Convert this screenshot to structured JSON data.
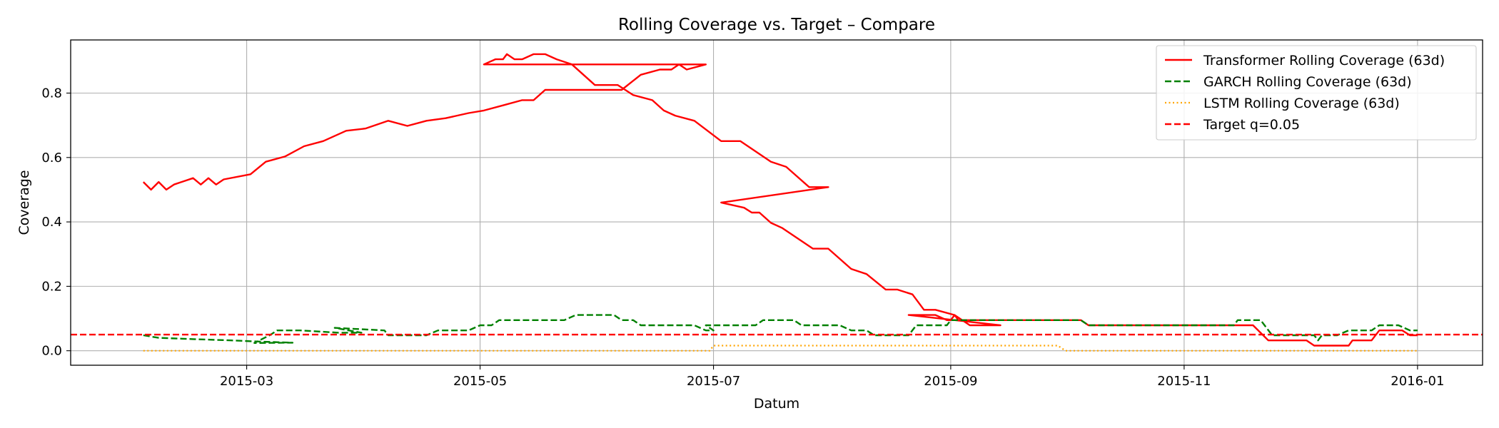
{
  "chart_data": {
    "type": "line",
    "title": "Rolling Coverage vs. Target – Compare",
    "xlabel": "Datum",
    "ylabel": "Coverage",
    "x_axis": {
      "kind": "date",
      "range": [
        "2015-01-14",
        "2016-01-18"
      ]
    },
    "y_axis": {
      "range": [
        -0.045,
        0.965
      ]
    },
    "xticks": [
      {
        "value": "2015-03-01",
        "label": "2015-03"
      },
      {
        "value": "2015-05-01",
        "label": "2015-05"
      },
      {
        "value": "2015-07-01",
        "label": "2015-07"
      },
      {
        "value": "2015-09-01",
        "label": "2015-09"
      },
      {
        "value": "2015-11-01",
        "label": "2015-11"
      },
      {
        "value": "2016-01-01",
        "label": "2016-01"
      }
    ],
    "yticks": [
      {
        "value": 0.0,
        "label": "0.0"
      },
      {
        "value": 0.2,
        "label": "0.2"
      },
      {
        "value": 0.4,
        "label": "0.4"
      },
      {
        "value": 0.6,
        "label": "0.6"
      },
      {
        "value": 0.8,
        "label": "0.8"
      }
    ],
    "grid": true,
    "legend_position": "top-right",
    "series": [
      {
        "name": "Transformer Rolling Coverage (63d)",
        "color": "#ff0000",
        "style": "solid",
        "points": [
          [
            "2015-02-02",
            0.524
          ],
          [
            "2015-02-04",
            0.5
          ],
          [
            "2015-02-06",
            0.524
          ],
          [
            "2015-02-08",
            0.5
          ],
          [
            "2015-02-10",
            0.516
          ],
          [
            "2015-02-15",
            0.536
          ],
          [
            "2015-02-17",
            0.516
          ],
          [
            "2015-02-19",
            0.536
          ],
          [
            "2015-02-21",
            0.516
          ],
          [
            "2015-02-23",
            0.532
          ],
          [
            "2015-03-02",
            0.548
          ],
          [
            "2015-03-06",
            0.587
          ],
          [
            "2015-03-11",
            0.603
          ],
          [
            "2015-03-16",
            0.635
          ],
          [
            "2015-03-21",
            0.651
          ],
          [
            "2015-03-27",
            0.683
          ],
          [
            "2015-04-01",
            0.69
          ],
          [
            "2015-04-07",
            0.714
          ],
          [
            "2015-04-12",
            0.698
          ],
          [
            "2015-04-17",
            0.714
          ],
          [
            "2015-04-22",
            0.722
          ],
          [
            "2015-04-28",
            0.738
          ],
          [
            "2015-05-02",
            0.746
          ],
          [
            "2015-05-07",
            0.762
          ],
          [
            "2015-05-12",
            0.778
          ],
          [
            "2015-05-15",
            0.778
          ],
          [
            "2015-05-18",
            0.81
          ],
          [
            "2015-05-23",
            0.81
          ],
          [
            "2015-06-01",
            0.81
          ],
          [
            "2015-06-07",
            0.81
          ],
          [
            "2015-06-12",
            0.857
          ],
          [
            "2015-06-17",
            0.873
          ],
          [
            "2015-06-20",
            0.873
          ],
          [
            "2015-06-22",
            0.889
          ],
          [
            "2015-06-24",
            0.873
          ],
          [
            "2015-06-29",
            0.889
          ],
          [
            "2015-05-02",
            0.889
          ],
          [
            "2015-05-05",
            0.905
          ],
          [
            "2015-05-07",
            0.905
          ],
          [
            "2015-05-08",
            0.921
          ],
          [
            "2015-05-10",
            0.905
          ],
          [
            "2015-05-12",
            0.905
          ],
          [
            "2015-05-15",
            0.921
          ],
          [
            "2015-05-18",
            0.921
          ],
          [
            "2015-05-21",
            0.905
          ],
          [
            "2015-05-25",
            0.889
          ],
          [
            "2015-05-31",
            0.825
          ],
          [
            "2015-06-06",
            0.825
          ],
          [
            "2015-06-10",
            0.794
          ],
          [
            "2015-06-15",
            0.778
          ],
          [
            "2015-06-18",
            0.746
          ],
          [
            "2015-06-21",
            0.73
          ],
          [
            "2015-06-26",
            0.714
          ],
          [
            "2015-07-03",
            0.651
          ],
          [
            "2015-07-08",
            0.651
          ],
          [
            "2015-07-16",
            0.587
          ],
          [
            "2015-07-20",
            0.571
          ],
          [
            "2015-07-26",
            0.508
          ],
          [
            "2015-07-31",
            0.508
          ],
          [
            "2015-07-03",
            0.46
          ],
          [
            "2015-07-09",
            0.444
          ],
          [
            "2015-07-11",
            0.429
          ],
          [
            "2015-07-13",
            0.429
          ],
          [
            "2015-07-16",
            0.397
          ],
          [
            "2015-07-19",
            0.381
          ],
          [
            "2015-07-27",
            0.317
          ],
          [
            "2015-07-31",
            0.317
          ],
          [
            "2015-08-06",
            0.254
          ],
          [
            "2015-08-10",
            0.238
          ],
          [
            "2015-08-15",
            0.19
          ],
          [
            "2015-08-18",
            0.19
          ],
          [
            "2015-08-22",
            0.175
          ],
          [
            "2015-08-25",
            0.127
          ],
          [
            "2015-08-28",
            0.127
          ],
          [
            "2015-09-02",
            0.111
          ],
          [
            "2015-09-06",
            0.079
          ],
          [
            "2015-09-10",
            0.079
          ],
          [
            "2015-09-14",
            0.079
          ],
          [
            "2015-08-21",
            0.111
          ],
          [
            "2015-08-28",
            0.111
          ],
          [
            "2015-08-31",
            0.095
          ],
          [
            "2015-09-01",
            0.095
          ],
          [
            "2015-09-02",
            0.111
          ],
          [
            "2015-09-03",
            0.095
          ],
          [
            "2015-10-05",
            0.095
          ],
          [
            "2015-10-07",
            0.079
          ],
          [
            "2015-11-19",
            0.079
          ],
          [
            "2015-11-23",
            0.032
          ],
          [
            "2015-12-03",
            0.032
          ],
          [
            "2015-12-05",
            0.016
          ],
          [
            "2015-12-14",
            0.016
          ],
          [
            "2015-12-15",
            0.032
          ],
          [
            "2015-12-20",
            0.032
          ],
          [
            "2015-12-22",
            0.063
          ],
          [
            "2015-12-28",
            0.063
          ],
          [
            "2015-12-30",
            0.048
          ],
          [
            "2016-01-01",
            0.048
          ]
        ]
      },
      {
        "name": "GARCH Rolling Coverage (63d)",
        "color": "#008000",
        "style": "dashed",
        "points": [
          [
            "2015-02-02",
            0.048
          ],
          [
            "2015-02-06",
            0.04
          ],
          [
            "2015-02-15",
            0.036
          ],
          [
            "2015-02-25",
            0.032
          ],
          [
            "2015-03-05",
            0.028
          ],
          [
            "2015-03-13",
            0.025
          ],
          [
            "2015-03-03",
            0.024
          ],
          [
            "2015-03-07",
            0.048
          ],
          [
            "2015-03-09",
            0.063
          ],
          [
            "2015-03-15",
            0.063
          ],
          [
            "2015-03-25",
            0.056
          ],
          [
            "2015-03-31",
            0.056
          ],
          [
            "2015-03-24",
            0.071
          ],
          [
            "2015-04-06",
            0.063
          ],
          [
            "2015-04-07",
            0.048
          ],
          [
            "2015-04-17",
            0.048
          ],
          [
            "2015-04-20",
            0.063
          ],
          [
            "2015-04-28",
            0.063
          ],
          [
            "2015-05-01",
            0.079
          ],
          [
            "2015-05-04",
            0.079
          ],
          [
            "2015-05-06",
            0.095
          ],
          [
            "2015-05-23",
            0.095
          ],
          [
            "2015-05-26",
            0.111
          ],
          [
            "2015-06-05",
            0.111
          ],
          [
            "2015-06-07",
            0.095
          ],
          [
            "2015-06-10",
            0.095
          ],
          [
            "2015-06-12",
            0.079
          ],
          [
            "2015-06-26",
            0.079
          ],
          [
            "2015-06-29",
            0.063
          ],
          [
            "2015-07-01",
            0.063
          ],
          [
            "2015-06-29",
            0.079
          ],
          [
            "2015-07-12",
            0.079
          ],
          [
            "2015-07-14",
            0.095
          ],
          [
            "2015-07-22",
            0.095
          ],
          [
            "2015-07-24",
            0.079
          ],
          [
            "2015-08-03",
            0.079
          ],
          [
            "2015-08-06",
            0.063
          ],
          [
            "2015-08-10",
            0.063
          ],
          [
            "2015-08-12",
            0.048
          ],
          [
            "2015-08-21",
            0.048
          ],
          [
            "2015-08-23",
            0.079
          ],
          [
            "2015-08-31",
            0.079
          ],
          [
            "2015-09-01",
            0.095
          ],
          [
            "2015-10-05",
            0.095
          ],
          [
            "2015-10-07",
            0.079
          ],
          [
            "2015-11-14",
            0.079
          ],
          [
            "2015-11-15",
            0.095
          ],
          [
            "2015-11-21",
            0.095
          ],
          [
            "2015-11-24",
            0.048
          ],
          [
            "2015-12-05",
            0.048
          ],
          [
            "2015-12-06",
            0.032
          ],
          [
            "2015-12-07",
            0.048
          ],
          [
            "2015-12-11",
            0.048
          ],
          [
            "2015-12-14",
            0.063
          ],
          [
            "2015-12-20",
            0.063
          ],
          [
            "2015-12-22",
            0.079
          ],
          [
            "2015-12-27",
            0.079
          ],
          [
            "2015-12-30",
            0.063
          ],
          [
            "2016-01-01",
            0.063
          ]
        ]
      },
      {
        "name": "LSTM Rolling Coverage (63d)",
        "color": "#ffa500",
        "style": "dotted",
        "points": [
          [
            "2015-02-02",
            0.0
          ],
          [
            "2015-06-30",
            0.0
          ],
          [
            "2015-07-01",
            0.016
          ],
          [
            "2015-09-29",
            0.016
          ],
          [
            "2015-10-01",
            0.0
          ],
          [
            "2016-01-01",
            0.0
          ]
        ]
      },
      {
        "name": "Target q=0.05",
        "color": "#ff0000",
        "style": "dashed",
        "kind": "hline",
        "y": 0.05
      }
    ]
  }
}
